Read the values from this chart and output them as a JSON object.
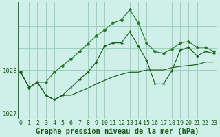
{
  "title": "Graphe pression niveau de la mer (hPa)",
  "bg_color": "#cff0e8",
  "grid_color": "#9ecfbf",
  "line_color_dark": "#1a5c1a",
  "line_color_mid": "#2a7a2a",
  "x": [
    0,
    1,
    2,
    3,
    4,
    5,
    6,
    7,
    8,
    9,
    10,
    11,
    12,
    13,
    14,
    15,
    16,
    17,
    18,
    19,
    20,
    21,
    22,
    23
  ],
  "y_upper": [
    1027.95,
    1027.6,
    1027.72,
    1027.72,
    1027.95,
    1028.1,
    1028.25,
    1028.42,
    1028.6,
    1028.78,
    1028.92,
    1029.08,
    1029.15,
    1029.38,
    1029.08,
    1028.62,
    1028.42,
    1028.38,
    1028.48,
    1028.62,
    1028.65,
    1028.52,
    1028.52,
    1028.42
  ],
  "y_main": [
    1027.95,
    1027.6,
    1027.72,
    1027.42,
    1027.32,
    1027.42,
    1027.6,
    1027.78,
    1027.95,
    1028.18,
    1028.55,
    1028.62,
    1028.62,
    1028.88,
    1028.55,
    1028.22,
    1027.68,
    1027.68,
    1027.98,
    1028.45,
    1028.52,
    1028.32,
    1028.42,
    1028.38
  ],
  "y_lower": [
    1027.95,
    1027.6,
    1027.72,
    1027.42,
    1027.32,
    1027.42,
    1027.42,
    1027.5,
    1027.58,
    1027.68,
    1027.76,
    1027.84,
    1027.9,
    1027.95,
    1027.95,
    1028.0,
    1028.0,
    1028.0,
    1028.05,
    1028.08,
    1028.1,
    1028.12,
    1028.18,
    1028.18
  ],
  "ylim": [
    1026.88,
    1029.55
  ],
  "yticks": [
    1027,
    1028
  ],
  "xlim": [
    -0.3,
    23.3
  ],
  "title_fontsize": 7.5,
  "tick_fontsize": 6.0,
  "ytick_fontsize": 6.5
}
